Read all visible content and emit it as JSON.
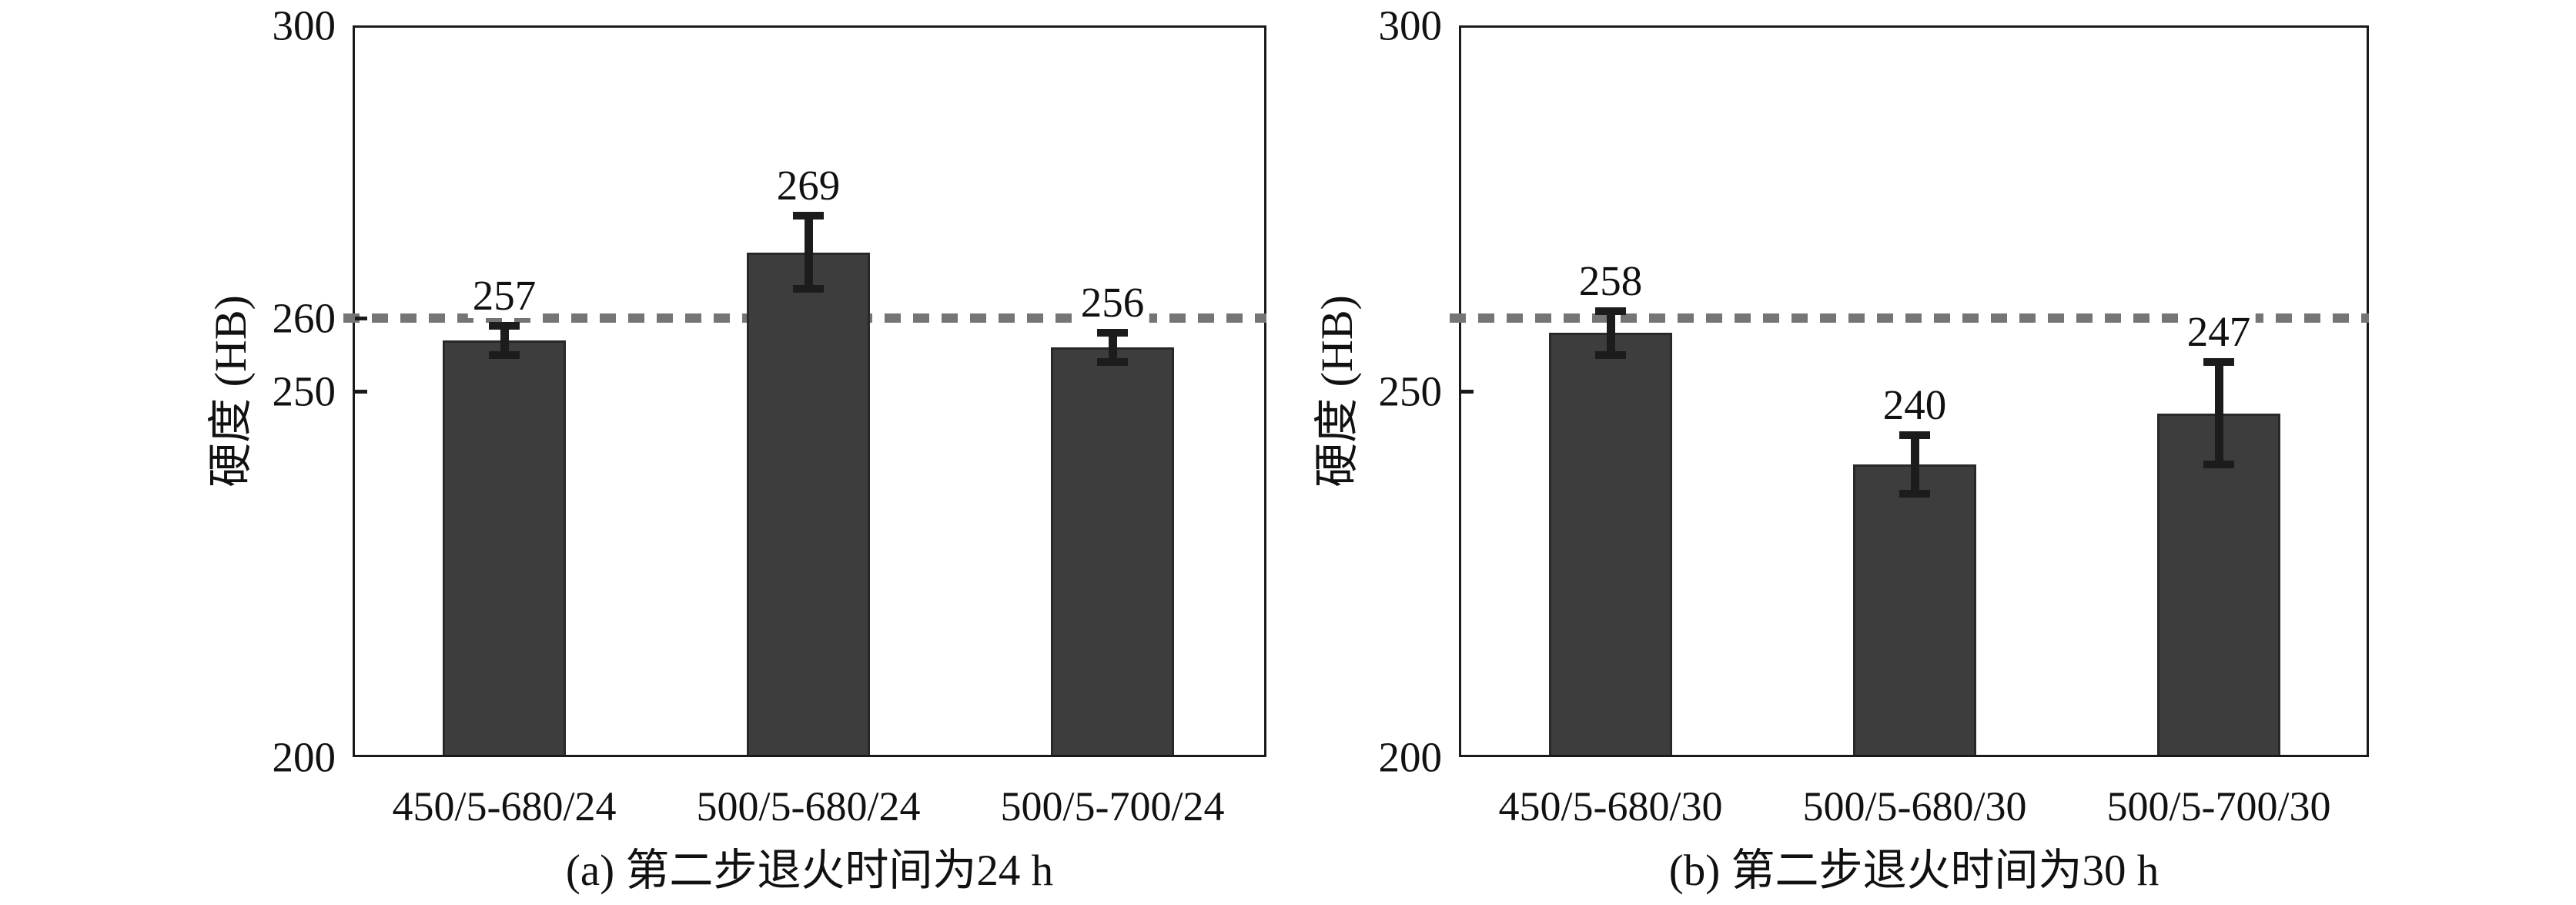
{
  "colors": {
    "background": "#ffffff",
    "text": "#111111",
    "axis": "#1a1a1a",
    "bar_fill": "#3d3d3d",
    "bar_edge": "#282828",
    "error_bar": "#1c1c1c",
    "reference_line": "#757575"
  },
  "chart_data": [
    {
      "type": "bar",
      "caption": "(a) 第二步退火时间为24 h",
      "ylabel": "硬度 (HB)",
      "ylim": [
        200,
        300
      ],
      "yticks": [
        300,
        260,
        250,
        200
      ],
      "reference_line_y": 260,
      "grid": false,
      "legend": null,
      "categories": [
        "450/5-680/24",
        "500/5-680/24",
        "500/5-700/24"
      ],
      "values": [
        257,
        269,
        256
      ],
      "error_bars": [
        2,
        5,
        2
      ]
    },
    {
      "type": "bar",
      "caption": "(b) 第二步退火时间为30 h",
      "ylabel": "硬度 (HB)",
      "ylim": [
        200,
        300
      ],
      "yticks": [
        300,
        250,
        200
      ],
      "reference_line_y": 260,
      "grid": false,
      "legend": null,
      "categories": [
        "450/5-680/30",
        "500/5-680/30",
        "500/5-700/30"
      ],
      "values": [
        258,
        240,
        247
      ],
      "error_bars": [
        3,
        4,
        7
      ]
    }
  ]
}
